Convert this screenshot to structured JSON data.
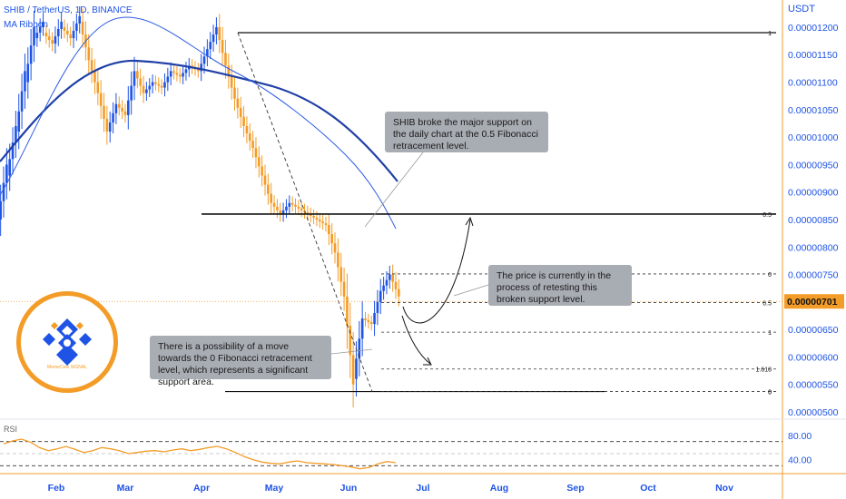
{
  "header": {
    "title": "SHIB / TetherUS, 1D, BINANCE",
    "indicator": "MA Ribbon",
    "currency": "USDT"
  },
  "logo": {
    "caption": "MemeCoin SIGNAL"
  },
  "colors": {
    "accent": "#1e53e5",
    "candle_up": "#1e53e5",
    "candle_down": "#f39c27",
    "rsi_line": "#f39c27",
    "price_tag": "#f39c27"
  },
  "annotations": {
    "note1": "SHIB broke the major support on the daily chart at the 0.5 Fibonacci retracement level.",
    "note2": "The price is currently in the process of retesting this broken support level.",
    "note3": "There is a possibility of a move towards the 0 Fibonacci retracement level, which represents a significant support area."
  },
  "chart_data": {
    "type": "candlestick",
    "ylim": [
      5e-06,
      1.22e-05
    ],
    "y_tick_labels": [
      "0.00001200",
      "0.00001150",
      "0.00001100",
      "0.00001050",
      "0.00001000",
      "0.00000950",
      "0.00000900",
      "0.00000850",
      "0.00000800",
      "0.00000750",
      "0.00000700",
      "0.00000650",
      "0.00000600",
      "0.00000550",
      "0.00000500"
    ],
    "y_tick_values": [
      1.2e-05,
      1.15e-05,
      1.1e-05,
      1.05e-05,
      1e-05,
      9.5e-06,
      9e-06,
      8.5e-06,
      8e-06,
      7.5e-06,
      7e-06,
      6.5e-06,
      6e-06,
      5.5e-06,
      5e-06
    ],
    "x_tick_labels": [
      "Feb",
      "Mar",
      "Apr",
      "May",
      "Jun",
      "Jul",
      "Aug",
      "Sep",
      "Oct",
      "Nov"
    ],
    "current_price": {
      "label": "0.00000701",
      "value": 7.01e-06
    },
    "fib_major": [
      {
        "label": "1",
        "value": 1.19e-05
      },
      {
        "label": "0.5",
        "value": 8.6e-06
      },
      {
        "label": "0",
        "value": 5.37e-06
      }
    ],
    "fib_minor": [
      {
        "label": "0",
        "value": 7.51e-06
      },
      {
        "label": "0.5",
        "value": 6.99e-06
      },
      {
        "label": "1",
        "value": 6.45e-06
      },
      {
        "label": "1.618",
        "value": 5.78e-06
      },
      {
        "label": "0",
        "value": 5.37e-06
      }
    ],
    "candles_sampled": [
      [
        8.5e-06,
        9.5e-06
      ],
      [
        9.3e-06,
        1.02e-05
      ],
      [
        1.01e-05,
        1.12e-05
      ],
      [
        1.1e-05,
        1.2e-05
      ],
      [
        1.18e-05,
        1.21e-05
      ],
      [
        1.19e-05,
        1.17e-05
      ],
      [
        1.17e-05,
        1.21e-05
      ],
      [
        1.2e-05,
        1.18e-05
      ],
      [
        1.18e-05,
        1.22e-05
      ],
      [
        1.21e-05,
        1.14e-05
      ],
      [
        1.14e-05,
        1.08e-05
      ],
      [
        1.08e-05,
        1.01e-05
      ],
      [
        1.01e-05,
        1.06e-05
      ],
      [
        1.06e-05,
        1.04e-05
      ],
      [
        1.04e-05,
        1.12e-05
      ],
      [
        1.12e-05,
        1.08e-05
      ],
      [
        1.08e-05,
        1.1e-05
      ],
      [
        1.1e-05,
        1.09e-05
      ],
      [
        1.09e-05,
        1.12e-05
      ],
      [
        1.12e-05,
        1.11e-05
      ],
      [
        1.11e-05,
        1.13e-05
      ],
      [
        1.13e-05,
        1.12e-05
      ],
      [
        1.12e-05,
        1.16e-05
      ],
      [
        1.16e-05,
        1.2e-05
      ],
      [
        1.2e-05,
        1.13e-05
      ],
      [
        1.13e-05,
        1.07e-05
      ],
      [
        1.07e-05,
        1.02e-05
      ],
      [
        1.02e-05,
        9.8e-06
      ],
      [
        9.8e-06,
        9.3e-06
      ],
      [
        9.3e-06,
        8.8e-06
      ],
      [
        8.8e-06,
        8.6e-06
      ],
      [
        8.6e-06,
        8.8e-06
      ],
      [
        8.8e-06,
        8.7e-06
      ],
      [
        8.7e-06,
        8.6e-06
      ],
      [
        8.6e-06,
        8.5e-06
      ],
      [
        8.5e-06,
        8.4e-06
      ],
      [
        8.4e-06,
        7.9e-06
      ],
      [
        7.9e-06,
        7.1e-06
      ],
      [
        7.1e-06,
        5.5e-06
      ],
      [
        5.6e-06,
        6.7e-06
      ],
      [
        6.7e-06,
        6.6e-06
      ],
      [
        6.6e-06,
        7.2e-06
      ],
      [
        7.2e-06,
        7.5e-06
      ],
      [
        7.5e-06,
        7.1e-06
      ]
    ],
    "series": [
      {
        "name": "MA Ribbon",
        "values": []
      }
    ],
    "rsi": {
      "y_tick_labels": [
        "80.00",
        "40.00"
      ],
      "y_tick_values": [
        80,
        40
      ],
      "ylim": [
        20,
        95
      ],
      "values": [
        66,
        71,
        74,
        69,
        60,
        55,
        58,
        62,
        57,
        52,
        55,
        60,
        58,
        55,
        50,
        52,
        54,
        55,
        53,
        56,
        58,
        55,
        57,
        60,
        62,
        58,
        52,
        45,
        40,
        36,
        34,
        33,
        36,
        38,
        35,
        34,
        33,
        32,
        30,
        28,
        25,
        27,
        33,
        37,
        35
      ]
    },
    "grid": true
  }
}
